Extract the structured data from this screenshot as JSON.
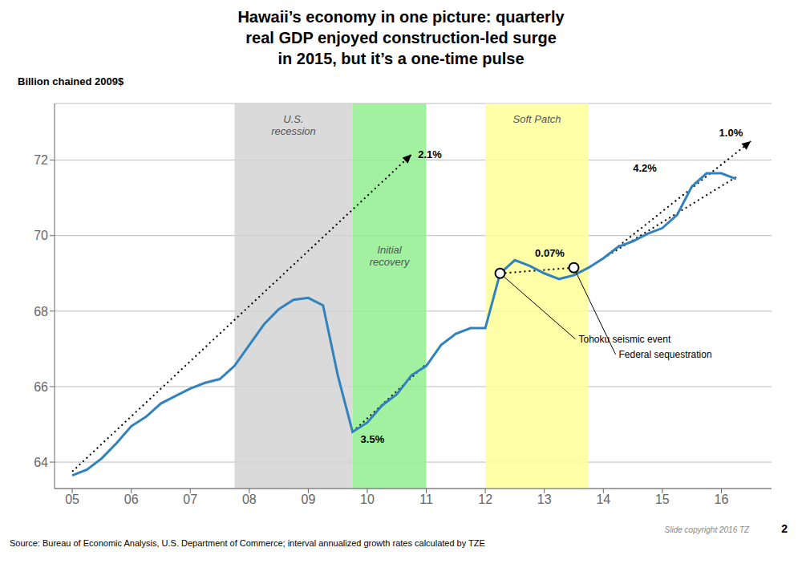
{
  "chart_data": {
    "type": "line",
    "title": "Hawaii’s economy in one picture:  quarterly\nreal GDP enjoyed construction-led surge\nin 2015, but it’s a one-time pulse",
    "y_label": "Billion chained 2009$",
    "x": [
      5.0,
      5.25,
      5.5,
      5.75,
      6.0,
      6.25,
      6.5,
      6.75,
      7.0,
      7.25,
      7.5,
      7.75,
      8.0,
      8.25,
      8.5,
      8.75,
      9.0,
      9.25,
      9.5,
      9.75,
      10.0,
      10.25,
      10.5,
      10.75,
      11.0,
      11.25,
      11.5,
      11.75,
      12.0,
      12.25,
      12.5,
      12.75,
      13.0,
      13.25,
      13.5,
      13.75,
      14.0,
      14.25,
      14.5,
      14.75,
      15.0,
      15.25,
      15.5,
      15.75,
      16.0,
      16.25
    ],
    "values": [
      63.65,
      63.8,
      64.1,
      64.5,
      64.95,
      65.2,
      65.55,
      65.75,
      65.95,
      66.1,
      66.2,
      66.55,
      67.1,
      67.65,
      68.05,
      68.3,
      68.35,
      68.15,
      66.3,
      64.8,
      65.05,
      65.5,
      65.8,
      66.3,
      66.55,
      67.1,
      67.4,
      67.55,
      67.55,
      69.0,
      69.35,
      69.2,
      69.0,
      68.85,
      68.95,
      69.15,
      69.4,
      69.7,
      69.85,
      70.05,
      70.2,
      70.55,
      71.3,
      71.65,
      71.65,
      71.5
    ],
    "xlim": [
      4.7,
      16.85
    ],
    "xticks": [
      {
        "value": 5,
        "label": "05"
      },
      {
        "value": 6,
        "label": "06"
      },
      {
        "value": 7,
        "label": "07"
      },
      {
        "value": 8,
        "label": "08"
      },
      {
        "value": 9,
        "label": "09"
      },
      {
        "value": 10,
        "label": "10"
      },
      {
        "value": 11,
        "label": "11"
      },
      {
        "value": 12,
        "label": "12"
      },
      {
        "value": 13,
        "label": "13"
      },
      {
        "value": 14,
        "label": "14"
      },
      {
        "value": 15,
        "label": "15"
      },
      {
        "value": 16,
        "label": "16"
      }
    ],
    "ylim": [
      63.3,
      73.5
    ],
    "yticks": [
      64,
      66,
      68,
      70,
      72
    ],
    "grid": true,
    "shaded_regions": [
      {
        "label": "U.S.\nrecession",
        "x": [
          7.75,
          9.75
        ],
        "color": "#d3d3d3"
      },
      {
        "label": "Initial\nrecovery",
        "x": [
          9.75,
          11.0
        ],
        "color": "#90ee90"
      },
      {
        "label": "Soft Patch",
        "x": [
          12.0,
          13.75
        ],
        "color": "#ffff99"
      }
    ],
    "trend_lines": [
      {
        "label": "2.1%",
        "x": [
          5.0,
          10.75
        ],
        "values": [
          63.75,
          72.15
        ],
        "color": "#000000",
        "line_style": "dotted",
        "marker": "arrow"
      },
      {
        "label": "3.5%",
        "x": [
          9.75,
          11.0
        ],
        "values": [
          64.8,
          66.6
        ],
        "color": "#000000",
        "line_style": "dotted",
        "marker": "none"
      },
      {
        "label": "0.07%",
        "x": [
          12.25,
          13.5
        ],
        "values": [
          69.0,
          69.15
        ],
        "color": "#000000",
        "line_style": "dotted",
        "marker": "none"
      },
      {
        "label": "4.2%",
        "x": [
          14.0,
          16.25
        ],
        "values": [
          69.4,
          71.55
        ],
        "color": "#000000",
        "line_style": "dotted",
        "marker": "none"
      },
      {
        "label": "1.0%",
        "x": [
          14.0,
          16.5
        ],
        "values": [
          69.4,
          72.5
        ],
        "color": "#000000",
        "line_style": "dotted",
        "marker": "arrow"
      }
    ],
    "events": [
      {
        "label": "Tohoku seismic event",
        "x": 12.25,
        "y": 69.0
      },
      {
        "label": "Federal sequestration",
        "x": 13.5,
        "y": 69.15
      }
    ],
    "source": "Source:   Bureau of Economic Analysis, U.S. Department of Commerce; interval annualized growth rates calculated by TZE",
    "notes": [
      "Slide copyright 2016 TZ",
      "2"
    ]
  }
}
